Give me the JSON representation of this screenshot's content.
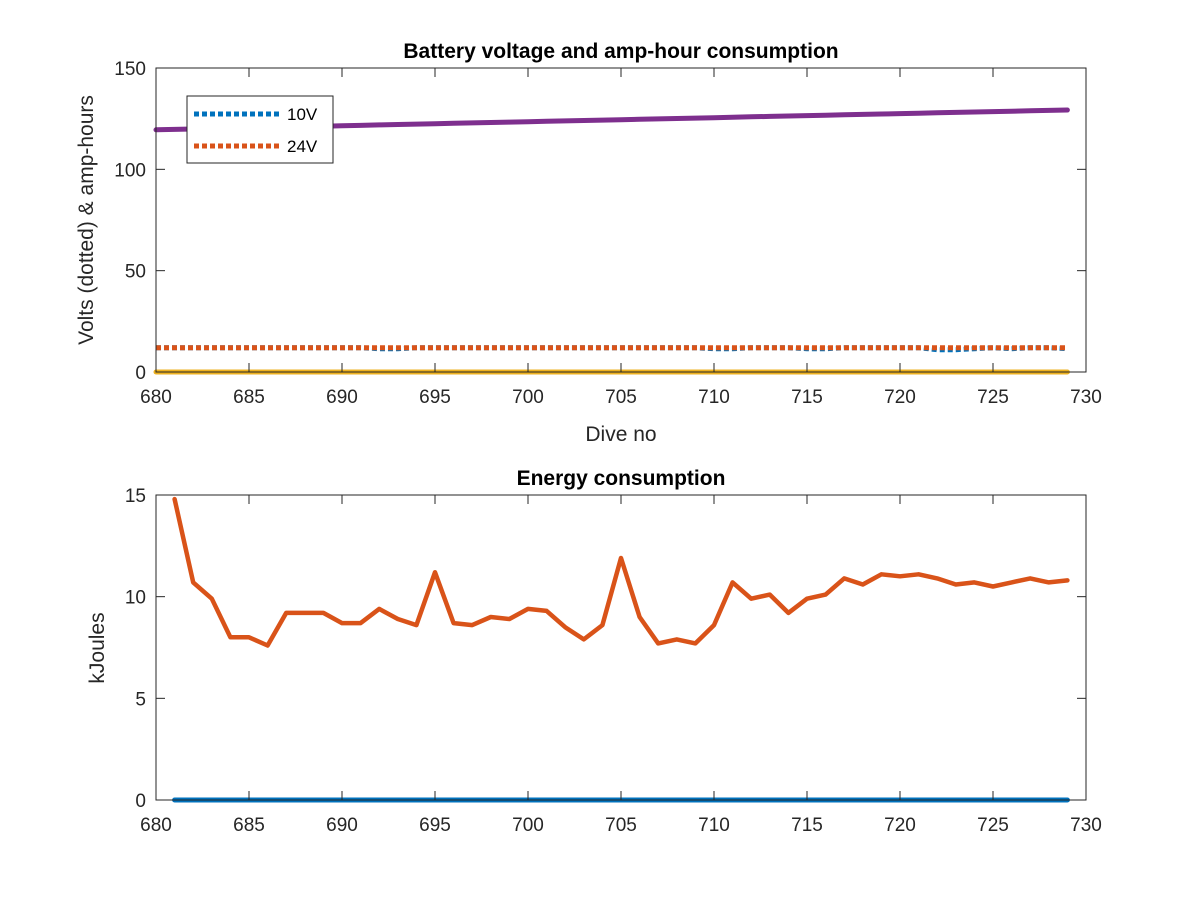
{
  "chart_data": [
    {
      "type": "line",
      "title": "Battery voltage and amp-hour consumption",
      "xlabel": "Dive no",
      "ylabel": "Volts (dotted) & amp-hours",
      "xlim": [
        680,
        730
      ],
      "ylim": [
        0,
        150
      ],
      "xticks": [
        "680",
        "685",
        "690",
        "695",
        "700",
        "705",
        "710",
        "715",
        "720",
        "725",
        "730"
      ],
      "yticks": [
        "0",
        "50",
        "100",
        "150"
      ],
      "legend_position": "top-left",
      "x": [
        680,
        681,
        682,
        683,
        684,
        685,
        686,
        687,
        688,
        689,
        690,
        691,
        692,
        693,
        694,
        695,
        696,
        697,
        698,
        699,
        700,
        701,
        702,
        703,
        704,
        705,
        706,
        707,
        708,
        709,
        710,
        711,
        712,
        713,
        714,
        715,
        716,
        717,
        718,
        719,
        720,
        721,
        722,
        723,
        724,
        725,
        726,
        727,
        728,
        729
      ],
      "series": [
        {
          "name": "10V",
          "style": "dotted",
          "color": "#0072BD",
          "values": [
            12,
            12,
            12,
            12,
            12,
            12,
            12,
            12,
            12,
            12,
            12,
            12,
            11.5,
            11.5,
            12,
            12,
            12,
            12,
            12,
            12,
            12,
            12,
            12,
            12,
            12,
            12,
            12,
            12,
            12,
            12,
            11.5,
            11.5,
            12,
            12,
            12,
            11.5,
            11.5,
            12,
            12,
            12,
            12,
            12,
            11,
            11,
            11.5,
            12,
            11.5,
            12,
            12,
            11.5
          ]
        },
        {
          "name": "24V",
          "style": "dotted",
          "color": "#D95319",
          "values": [
            12,
            12,
            12,
            12,
            12,
            12,
            12,
            12,
            12,
            12,
            12,
            12,
            12,
            12,
            12,
            12,
            12,
            12,
            12,
            12,
            12,
            12,
            12,
            12,
            12,
            12,
            12,
            12,
            12,
            12,
            12,
            12,
            12,
            12,
            12,
            12,
            12,
            12,
            12,
            12,
            12,
            12,
            12,
            12,
            12,
            12,
            12,
            12,
            12,
            12
          ]
        },
        {
          "style": "solid",
          "color": "#7E2F8E",
          "values": [
            119.5,
            119.7,
            119.9,
            120.1,
            120.3,
            120.5,
            120.7,
            120.9,
            121.1,
            121.3,
            121.5,
            121.7,
            121.9,
            122.1,
            122.3,
            122.5,
            122.7,
            122.9,
            123.1,
            123.3,
            123.5,
            123.7,
            123.9,
            124.1,
            124.3,
            124.5,
            124.7,
            124.9,
            125.1,
            125.3,
            125.5,
            125.7,
            125.9,
            126.1,
            126.3,
            126.5,
            126.7,
            126.9,
            127.1,
            127.3,
            127.5,
            127.7,
            127.9,
            128.1,
            128.3,
            128.5,
            128.7,
            128.9,
            129.1,
            129.3
          ]
        },
        {
          "style": "solid",
          "color": "#EDB120",
          "values": [
            0,
            0,
            0,
            0,
            0,
            0,
            0,
            0,
            0,
            0,
            0,
            0,
            0,
            0,
            0,
            0,
            0,
            0,
            0,
            0,
            0,
            0,
            0,
            0,
            0,
            0,
            0,
            0,
            0,
            0,
            0,
            0,
            0,
            0,
            0,
            0,
            0,
            0,
            0,
            0,
            0,
            0,
            0,
            0,
            0,
            0,
            0,
            0,
            0,
            0
          ]
        }
      ]
    },
    {
      "type": "line",
      "title": "Energy consumption",
      "xlabel": "",
      "ylabel": "kJoules",
      "xlim": [
        680,
        730
      ],
      "ylim": [
        0,
        15
      ],
      "xticks": [
        "680",
        "685",
        "690",
        "695",
        "700",
        "705",
        "710",
        "715",
        "720",
        "725",
        "730"
      ],
      "yticks": [
        "0",
        "5",
        "10",
        "15"
      ],
      "x": [
        681,
        682,
        683,
        684,
        685,
        686,
        687,
        688,
        689,
        690,
        691,
        692,
        693,
        694,
        695,
        696,
        697,
        698,
        699,
        700,
        701,
        702,
        703,
        704,
        705,
        706,
        707,
        708,
        709,
        710,
        711,
        712,
        713,
        714,
        715,
        716,
        717,
        718,
        719,
        720,
        721,
        722,
        723,
        724,
        725,
        726,
        727,
        728,
        729
      ],
      "series": [
        {
          "style": "solid",
          "color": "#0072BD",
          "values": [
            0,
            0,
            0,
            0,
            0,
            0,
            0,
            0,
            0,
            0,
            0,
            0,
            0,
            0,
            0,
            0,
            0,
            0,
            0,
            0,
            0,
            0,
            0,
            0,
            0,
            0,
            0,
            0,
            0,
            0,
            0,
            0,
            0,
            0,
            0,
            0,
            0,
            0,
            0,
            0,
            0,
            0,
            0,
            0,
            0,
            0,
            0,
            0,
            0
          ]
        },
        {
          "style": "solid",
          "color": "#D95319",
          "values": [
            14.8,
            10.7,
            9.9,
            8.0,
            8.0,
            7.6,
            9.2,
            9.2,
            9.2,
            8.7,
            8.7,
            9.4,
            8.9,
            8.6,
            11.2,
            8.7,
            8.6,
            9.0,
            8.9,
            9.4,
            9.3,
            8.5,
            7.9,
            8.6,
            11.9,
            9.0,
            7.7,
            7.9,
            7.7,
            8.6,
            10.7,
            9.9,
            10.1,
            9.2,
            9.9,
            10.1,
            10.9,
            10.6,
            11.1,
            11.0,
            11.1,
            10.9,
            10.6,
            10.7,
            10.5,
            10.7,
            10.9,
            10.7,
            10.8
          ]
        }
      ]
    }
  ]
}
